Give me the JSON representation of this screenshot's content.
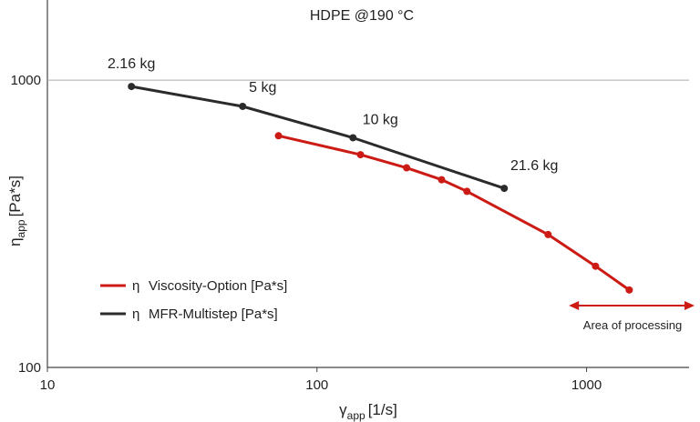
{
  "chart_data": {
    "type": "line",
    "title": "HDPE @190 °C",
    "x_scale": "log",
    "y_scale": "log",
    "xlim": [
      10,
      2400
    ],
    "ylim": [
      100,
      1900
    ],
    "xlabel": {
      "main": "γ",
      "sub": "app",
      "unit": "[1/s]"
    },
    "ylabel": {
      "main": "η",
      "sub": "app",
      "unit": "[Pa*s]"
    },
    "xticks": [
      {
        "value": 10,
        "label": "10"
      },
      {
        "value": 100,
        "label": "100"
      },
      {
        "value": 1000,
        "label": "1000"
      }
    ],
    "yticks": [
      {
        "value": 100,
        "label": "100"
      },
      {
        "value": 1000,
        "label": "1000"
      }
    ],
    "gridlines_y": [
      1000
    ],
    "series": [
      {
        "name": "η Viscosity-Option [Pa*s]",
        "color": "#cc1a14",
        "points": [
          {
            "x": 72,
            "y": 640
          },
          {
            "x": 145,
            "y": 550
          },
          {
            "x": 215,
            "y": 495
          },
          {
            "x": 290,
            "y": 450
          },
          {
            "x": 360,
            "y": 410
          },
          {
            "x": 720,
            "y": 290
          },
          {
            "x": 1080,
            "y": 225
          },
          {
            "x": 1440,
            "y": 186
          }
        ]
      },
      {
        "name": "η MFR-Multistep [Pa*s]",
        "color": "#2b2b2b",
        "points": [
          {
            "x": 20.5,
            "y": 950,
            "label": "2.16 kg"
          },
          {
            "x": 53,
            "y": 810,
            "label": "5 kg"
          },
          {
            "x": 136,
            "y": 630,
            "label": "10 kg"
          },
          {
            "x": 495,
            "y": 420,
            "label": "21.6 kg"
          }
        ]
      }
    ],
    "legend": {
      "position": "bottom-left",
      "items": [
        {
          "symbol": "η",
          "text": "Viscosity-Option [Pa*s]",
          "color": "#cc1a14"
        },
        {
          "symbol": "η",
          "text": "MFR-Multistep [Pa*s]",
          "color": "#2b2b2b"
        }
      ]
    },
    "annotation": {
      "text": "Area of processing",
      "x_range": [
        860,
        2400
      ],
      "color": "#cc1a14"
    }
  }
}
